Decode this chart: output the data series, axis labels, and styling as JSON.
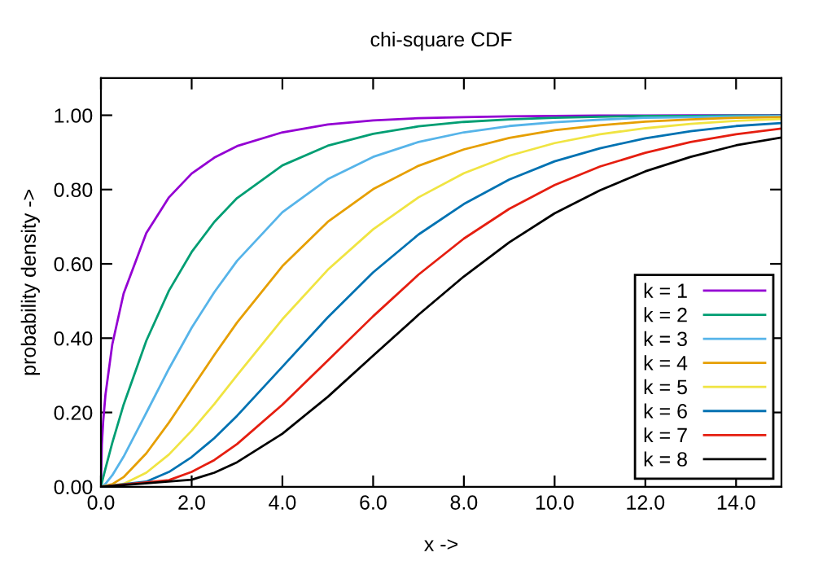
{
  "chart_data": {
    "type": "line",
    "title": "chi-square CDF",
    "xlabel": "x ->",
    "ylabel": "probability density ->",
    "x": [
      0,
      0.02,
      0.05,
      0.1,
      0.25,
      0.5,
      1,
      1.5,
      2,
      2.5,
      3,
      4,
      5,
      6,
      7,
      8,
      9,
      10,
      11,
      12,
      13,
      14,
      15
    ],
    "series": [
      {
        "name": "k = 1",
        "color": "#9400d3",
        "values": [
          0,
          0.113,
          0.177,
          0.248,
          0.383,
          0.52,
          0.683,
          0.779,
          0.843,
          0.886,
          0.917,
          0.954,
          0.975,
          0.986,
          0.992,
          0.995,
          0.997,
          0.998,
          0.999,
          0.999,
          1.0,
          1.0,
          1.0
        ]
      },
      {
        "name": "k = 2",
        "color": "#009e73",
        "values": [
          0,
          0.01,
          0.025,
          0.049,
          0.118,
          0.221,
          0.393,
          0.528,
          0.632,
          0.713,
          0.777,
          0.865,
          0.918,
          0.95,
          0.97,
          0.982,
          0.989,
          0.993,
          0.996,
          0.998,
          0.998,
          0.999,
          0.999
        ]
      },
      {
        "name": "k = 3",
        "color": "#56b4e9",
        "x": [
          0,
          0.05,
          0.1,
          0.25,
          0.5,
          1,
          1.5,
          2,
          2.5,
          3,
          4,
          5,
          6,
          7,
          8,
          9,
          10,
          11,
          12,
          13,
          14,
          15
        ],
        "values": [
          0,
          0.003,
          0.008,
          0.031,
          0.081,
          0.199,
          0.318,
          0.428,
          0.524,
          0.608,
          0.739,
          0.828,
          0.888,
          0.928,
          0.954,
          0.971,
          0.981,
          0.988,
          0.993,
          0.995,
          0.997,
          0.998
        ]
      },
      {
        "name": "k = 4",
        "color": "#e69f00",
        "x": [
          0,
          0.25,
          0.5,
          1,
          1.5,
          2,
          2.5,
          3,
          4,
          5,
          6,
          7,
          8,
          9,
          10,
          11,
          12,
          13,
          14,
          15
        ],
        "values": [
          0,
          0.007,
          0.026,
          0.09,
          0.173,
          0.264,
          0.355,
          0.442,
          0.594,
          0.713,
          0.801,
          0.864,
          0.908,
          0.939,
          0.96,
          0.973,
          0.983,
          0.989,
          0.993,
          0.995
        ]
      },
      {
        "name": "k = 5",
        "color": "#f0e442",
        "x": [
          0,
          0.5,
          1,
          1.5,
          2,
          2.5,
          3,
          4,
          5,
          6,
          7,
          8,
          9,
          10,
          11,
          12,
          13,
          14,
          15
        ],
        "values": [
          0,
          0.008,
          0.038,
          0.087,
          0.151,
          0.223,
          0.3,
          0.451,
          0.584,
          0.693,
          0.779,
          0.844,
          0.891,
          0.925,
          0.949,
          0.965,
          0.977,
          0.985,
          0.99
        ]
      },
      {
        "name": "k = 6",
        "color": "#0072b2",
        "x": [
          0,
          1,
          1.5,
          2,
          2.5,
          3,
          4,
          5,
          6,
          7,
          8,
          9,
          10,
          11,
          12,
          13,
          14,
          15
        ],
        "values": [
          0,
          0.014,
          0.04,
          0.08,
          0.131,
          0.191,
          0.323,
          0.456,
          0.577,
          0.679,
          0.761,
          0.827,
          0.876,
          0.911,
          0.938,
          0.957,
          0.971,
          0.979
        ]
      },
      {
        "name": "k = 7",
        "color": "#e51e10",
        "x": [
          0,
          1.5,
          2,
          2.5,
          3,
          4,
          5,
          6,
          7,
          8,
          9,
          10,
          11,
          12,
          13,
          14,
          15
        ],
        "values": [
          0,
          0.018,
          0.04,
          0.072,
          0.115,
          0.221,
          0.34,
          0.459,
          0.571,
          0.668,
          0.748,
          0.812,
          0.862,
          0.899,
          0.928,
          0.949,
          0.964
        ]
      },
      {
        "name": "k = 8",
        "color": "#000000",
        "x": [
          0,
          2,
          2.5,
          3,
          4,
          5,
          6,
          7,
          8,
          9,
          10,
          11,
          12,
          13,
          14,
          15
        ],
        "values": [
          0,
          0.019,
          0.038,
          0.066,
          0.143,
          0.242,
          0.353,
          0.463,
          0.566,
          0.658,
          0.736,
          0.798,
          0.849,
          0.888,
          0.919,
          0.94
        ]
      }
    ],
    "xlim": [
      0,
      15
    ],
    "ylim": [
      0,
      1.1
    ],
    "xticks": [
      {
        "value": 0,
        "label": "0.0"
      },
      {
        "value": 2,
        "label": "2.0"
      },
      {
        "value": 4,
        "label": "4.0"
      },
      {
        "value": 6,
        "label": "6.0"
      },
      {
        "value": 8,
        "label": "8.0"
      },
      {
        "value": 10,
        "label": "10.0"
      },
      {
        "value": 12,
        "label": "12.0"
      },
      {
        "value": 14,
        "label": "14.0"
      }
    ],
    "yticks": [
      {
        "value": 0,
        "label": "0.00"
      },
      {
        "value": 0.2,
        "label": "0.20"
      },
      {
        "value": 0.4,
        "label": "0.40"
      },
      {
        "value": 0.6,
        "label": "0.60"
      },
      {
        "value": 0.8,
        "label": "0.80"
      },
      {
        "value": 1.0,
        "label": "1.00"
      }
    ],
    "grid": false,
    "legend": "bottom right",
    "marker": "none",
    "line_style": "solid"
  }
}
